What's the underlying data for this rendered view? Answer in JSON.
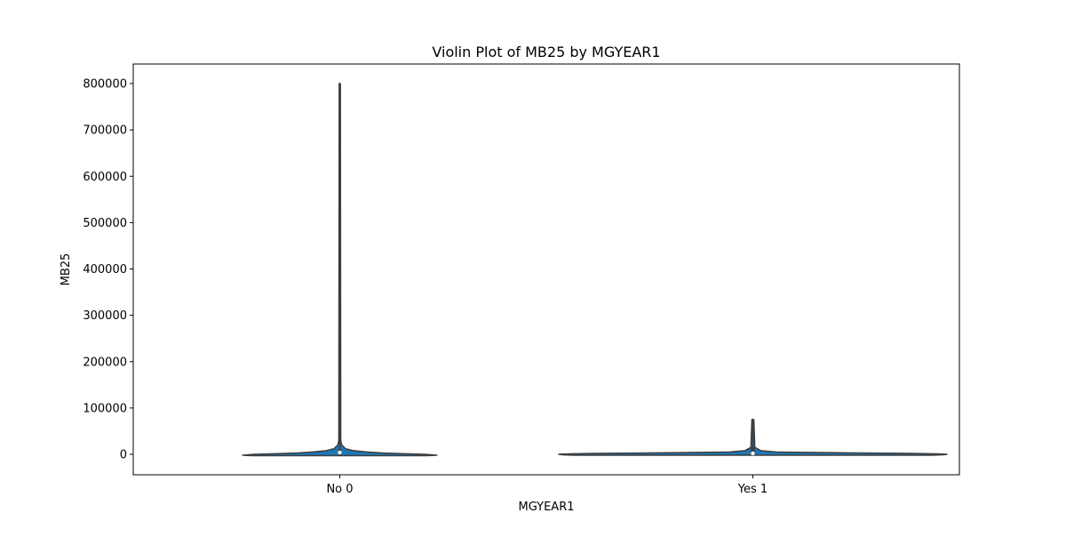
{
  "chart_data": {
    "type": "violin",
    "title": "Violin Plot of MB25 by MGYEAR1",
    "xlabel": "MGYEAR1",
    "ylabel": "MB25",
    "categories": [
      "No 0",
      "Yes 1"
    ],
    "ylim": [
      -44000,
      842000
    ],
    "yticks": [
      0,
      100000,
      200000,
      300000,
      400000,
      500000,
      600000,
      700000,
      800000
    ],
    "ytick_labels": [
      "0",
      "100000",
      "200000",
      "300000",
      "400000",
      "500000",
      "600000",
      "700000",
      "800000"
    ],
    "grid": false,
    "colors": {
      "fill": "#1f77b4",
      "outline": "#3d3d3d",
      "axes": "#000000"
    },
    "violins": [
      {
        "category": "No 0",
        "min": -3000,
        "q1": 1500,
        "median": 4000,
        "q3": 10000,
        "max": 800000,
        "density": [
          [
            -3000,
            0.45
          ],
          [
            -2000,
            0.5
          ],
          [
            0,
            0.44
          ],
          [
            1500,
            0.32
          ],
          [
            3000,
            0.22
          ],
          [
            5000,
            0.14
          ],
          [
            8000,
            0.07
          ],
          [
            12000,
            0.03
          ],
          [
            20000,
            0.01
          ],
          [
            30000,
            0.005
          ],
          [
            800000,
            0.003
          ]
        ]
      },
      {
        "category": "Yes 1",
        "min": -2000,
        "q1": 0,
        "median": 2000,
        "q3": 15000,
        "max": 75000,
        "density": [
          [
            -2000,
            0.92
          ],
          [
            -1000,
            0.98
          ],
          [
            0,
            1.0
          ],
          [
            1000,
            0.95
          ],
          [
            2000,
            0.82
          ],
          [
            3000,
            0.55
          ],
          [
            4000,
            0.3
          ],
          [
            5000,
            0.12
          ],
          [
            8000,
            0.04
          ],
          [
            15000,
            0.01
          ],
          [
            75000,
            0.005
          ]
        ]
      }
    ]
  }
}
